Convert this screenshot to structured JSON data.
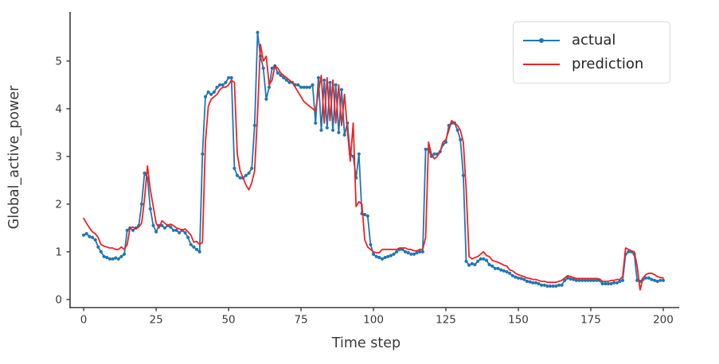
{
  "figure": {
    "title": "",
    "xlabel": "Time step",
    "ylabel": "Global_active_power",
    "background": "#ffffff",
    "axis_color": "#3a3a3a",
    "tick_label_color": "#3a3a3a"
  },
  "legend": {
    "position": "upper right",
    "items": [
      {
        "label": "actual",
        "color": "#1f77b4",
        "marker": "dot"
      },
      {
        "label": "prediction",
        "color": "#f02222",
        "marker": "none"
      }
    ]
  },
  "chart_data": {
    "type": "line",
    "title": "",
    "xlabel": "Time step",
    "ylabel": "Global_active_power",
    "xlim": [
      -4.7,
      205.5
    ],
    "ylim": [
      -0.17,
      6.03
    ],
    "xticks": [
      0,
      25,
      50,
      75,
      100,
      125,
      150,
      175,
      200
    ],
    "yticks": [
      0,
      1,
      2,
      3,
      4,
      5
    ],
    "grid": false,
    "legend_position": "upper right",
    "x": [
      0,
      1,
      2,
      3,
      4,
      5,
      6,
      7,
      8,
      9,
      10,
      11,
      12,
      13,
      14,
      15,
      16,
      17,
      18,
      19,
      20,
      21,
      22,
      23,
      24,
      25,
      26,
      27,
      28,
      29,
      30,
      31,
      32,
      33,
      34,
      35,
      36,
      37,
      38,
      39,
      40,
      41,
      42,
      43,
      44,
      45,
      46,
      47,
      48,
      49,
      50,
      51,
      52,
      53,
      54,
      55,
      56,
      57,
      58,
      59,
      60,
      61,
      62,
      63,
      64,
      65,
      66,
      67,
      68,
      69,
      70,
      71,
      72,
      73,
      74,
      75,
      76,
      77,
      78,
      79,
      80,
      81,
      82,
      83,
      84,
      85,
      86,
      87,
      88,
      89,
      90,
      91,
      92,
      93,
      94,
      95,
      96,
      97,
      98,
      99,
      100,
      101,
      102,
      103,
      104,
      105,
      106,
      107,
      108,
      109,
      110,
      111,
      112,
      113,
      114,
      115,
      116,
      117,
      118,
      119,
      120,
      121,
      122,
      123,
      124,
      125,
      126,
      127,
      128,
      129,
      130,
      131,
      132,
      133,
      134,
      135,
      136,
      137,
      138,
      139,
      140,
      141,
      142,
      143,
      144,
      145,
      146,
      147,
      148,
      149,
      150,
      151,
      152,
      153,
      154,
      155,
      156,
      157,
      158,
      159,
      160,
      161,
      162,
      163,
      164,
      165,
      166,
      167,
      168,
      169,
      170,
      171,
      172,
      173,
      174,
      175,
      176,
      177,
      178,
      179,
      180,
      181,
      182,
      183,
      184,
      185,
      186,
      187,
      188,
      189,
      190,
      191,
      192,
      193,
      194,
      195,
      196,
      197,
      198,
      199,
      200
    ],
    "series": [
      {
        "name": "actual",
        "color": "#1f77b4",
        "marker": "dot",
        "values": [
          1.35,
          1.38,
          1.32,
          1.3,
          1.25,
          1.1,
          1.0,
          0.9,
          0.88,
          0.85,
          0.85,
          0.87,
          0.85,
          0.9,
          0.95,
          1.45,
          1.5,
          1.45,
          1.5,
          1.55,
          2.0,
          2.65,
          2.55,
          1.9,
          1.55,
          1.42,
          1.55,
          1.55,
          1.5,
          1.55,
          1.52,
          1.45,
          1.45,
          1.4,
          1.45,
          1.4,
          1.3,
          1.15,
          1.1,
          1.05,
          1.0,
          3.05,
          4.25,
          4.35,
          4.3,
          4.35,
          4.45,
          4.5,
          4.5,
          4.55,
          4.65,
          4.65,
          2.75,
          2.6,
          2.55,
          2.55,
          2.6,
          2.65,
          2.75,
          3.65,
          5.6,
          5.1,
          4.85,
          4.2,
          4.45,
          4.85,
          4.9,
          4.75,
          4.7,
          4.65,
          4.6,
          4.55,
          4.55,
          4.5,
          4.5,
          4.45,
          4.45,
          4.45,
          4.45,
          4.5,
          3.7,
          4.65,
          3.55,
          4.6,
          3.6,
          4.55,
          3.55,
          4.5,
          3.5,
          4.4,
          3.45,
          3.7,
          3.05,
          3.0,
          2.55,
          3.05,
          1.8,
          1.78,
          1.75,
          1.15,
          0.95,
          0.9,
          0.88,
          0.85,
          0.88,
          0.9,
          0.92,
          0.95,
          1.0,
          1.05,
          1.05,
          1.0,
          0.98,
          0.95,
          0.95,
          0.98,
          1.0,
          1.0,
          3.15,
          3.15,
          3.0,
          3.05,
          3.05,
          3.1,
          3.25,
          3.3,
          3.65,
          3.7,
          3.7,
          3.55,
          3.35,
          2.6,
          0.8,
          0.72,
          0.75,
          0.73,
          0.8,
          0.85,
          0.85,
          0.82,
          0.73,
          0.7,
          0.65,
          0.65,
          0.62,
          0.6,
          0.58,
          0.55,
          0.5,
          0.47,
          0.45,
          0.44,
          0.42,
          0.38,
          0.37,
          0.35,
          0.35,
          0.33,
          0.3,
          0.3,
          0.28,
          0.28,
          0.28,
          0.28,
          0.3,
          0.3,
          0.4,
          0.45,
          0.43,
          0.42,
          0.4,
          0.4,
          0.4,
          0.4,
          0.4,
          0.4,
          0.4,
          0.4,
          0.4,
          0.33,
          0.33,
          0.33,
          0.33,
          0.35,
          0.35,
          0.38,
          0.4,
          0.95,
          1.0,
          1.0,
          0.95,
          0.4,
          0.38,
          0.42,
          0.45,
          0.45,
          0.42,
          0.4,
          0.38,
          0.4,
          0.4
        ]
      },
      {
        "name": "prediction",
        "color": "#f02222",
        "marker": "none",
        "values": [
          1.7,
          1.6,
          1.5,
          1.42,
          1.38,
          1.3,
          1.15,
          1.12,
          1.1,
          1.08,
          1.08,
          1.05,
          1.05,
          1.1,
          1.05,
          1.15,
          1.5,
          1.52,
          1.48,
          1.52,
          1.6,
          2.1,
          2.8,
          2.3,
          1.95,
          1.6,
          1.5,
          1.65,
          1.6,
          1.55,
          1.58,
          1.55,
          1.5,
          1.48,
          1.45,
          1.48,
          1.42,
          1.35,
          1.2,
          1.22,
          1.15,
          1.2,
          3.3,
          4.05,
          4.2,
          4.25,
          4.3,
          4.4,
          4.45,
          4.45,
          4.5,
          4.6,
          4.55,
          3.05,
          2.7,
          2.55,
          2.4,
          2.3,
          2.45,
          2.7,
          3.9,
          5.35,
          5.0,
          5.1,
          4.5,
          4.6,
          4.9,
          4.85,
          4.75,
          4.7,
          4.65,
          4.6,
          4.55,
          4.45,
          4.35,
          4.25,
          4.15,
          4.1,
          4.05,
          4.0,
          3.95,
          4.35,
          4.7,
          3.7,
          4.65,
          3.75,
          4.6,
          3.7,
          4.5,
          3.65,
          4.3,
          3.55,
          2.9,
          3.7,
          1.95,
          2.05,
          2.0,
          1.25,
          1.1,
          1.05,
          1.0,
          0.98,
          0.98,
          1.05,
          1.05,
          1.05,
          1.05,
          1.05,
          1.05,
          1.08,
          1.08,
          1.08,
          1.05,
          1.05,
          1.02,
          1.02,
          1.05,
          1.05,
          1.3,
          3.3,
          3.05,
          2.95,
          3.0,
          3.1,
          3.3,
          3.35,
          3.55,
          3.75,
          3.7,
          3.65,
          3.55,
          3.3,
          2.3,
          0.9,
          0.85,
          0.88,
          0.9,
          0.95,
          1.0,
          0.92,
          0.9,
          0.82,
          0.8,
          0.78,
          0.75,
          0.72,
          0.7,
          0.62,
          0.6,
          0.55,
          0.52,
          0.5,
          0.48,
          0.45,
          0.44,
          0.42,
          0.42,
          0.4,
          0.38,
          0.38,
          0.36,
          0.36,
          0.36,
          0.36,
          0.38,
          0.4,
          0.45,
          0.5,
          0.48,
          0.46,
          0.44,
          0.44,
          0.44,
          0.44,
          0.44,
          0.44,
          0.44,
          0.44,
          0.43,
          0.38,
          0.38,
          0.38,
          0.4,
          0.4,
          0.42,
          0.42,
          0.48,
          1.08,
          1.05,
          1.02,
          1.0,
          0.7,
          0.2,
          0.45,
          0.52,
          0.55,
          0.55,
          0.52,
          0.48,
          0.46,
          0.45
        ]
      }
    ]
  }
}
